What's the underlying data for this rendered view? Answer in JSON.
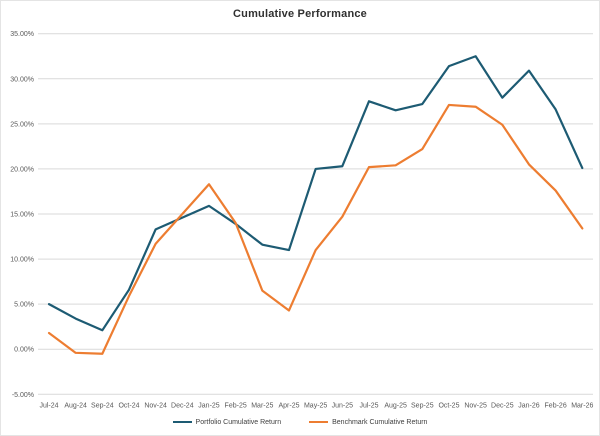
{
  "chart_data": {
    "type": "line",
    "title": "Cumulative Performance",
    "categories": [
      "Jul-24",
      "Aug-24",
      "Sep-24",
      "Oct-24",
      "Nov-24",
      "Dec-24",
      "Jan-25",
      "Feb-25",
      "Mar-25",
      "Apr-25",
      "May-25",
      "Jun-25",
      "Jul-25",
      "Aug-25",
      "Sep-25",
      "Oct-25",
      "Nov-25",
      "Dec-25",
      "Jan-26",
      "Feb-26",
      "Mar-26"
    ],
    "series": [
      {
        "name": "Portfolio Cumulative Return",
        "color": "#1D5B73",
        "values": [
          5.0,
          3.4,
          2.1,
          6.6,
          13.3,
          14.6,
          15.9,
          13.9,
          11.6,
          11.0,
          20.0,
          20.3,
          27.5,
          26.5,
          27.2,
          31.4,
          32.5,
          27.9,
          30.9,
          26.6,
          20.1
        ]
      },
      {
        "name": "Benchmark Cumulative Return",
        "color": "#ED7D31",
        "values": [
          1.8,
          -0.4,
          -0.5,
          5.9,
          11.7,
          15.0,
          18.3,
          14.0,
          6.5,
          4.3,
          11.0,
          14.7,
          20.2,
          20.4,
          22.2,
          27.1,
          26.9,
          24.9,
          20.5,
          17.6,
          13.4
        ]
      }
    ],
    "y_axis": {
      "min": -5,
      "max": 35,
      "step": 5,
      "format": "0.00%",
      "tick_labels": [
        "35.00%",
        "30.00%",
        "25.00%",
        "20.00%",
        "15.00%",
        "10.00%",
        "5.00%",
        "0.00%",
        "-5.00%"
      ]
    },
    "grid": true,
    "legend_position": "bottom",
    "colors": {
      "gridline": "#D9D9D9",
      "tick_text": "#595959",
      "title_text": "#303030",
      "legend_text": "#3F3F3F",
      "background": "#FFFFFF"
    }
  }
}
